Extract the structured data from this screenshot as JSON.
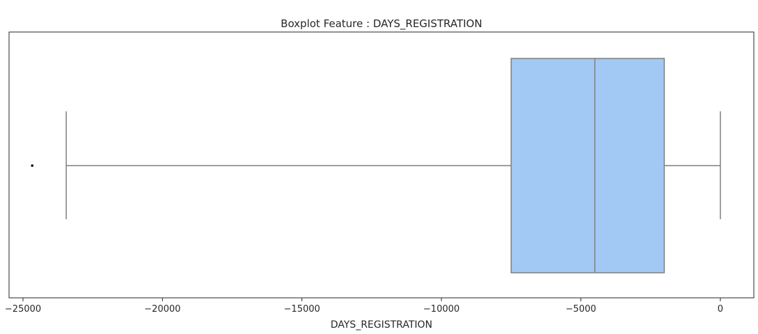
{
  "chart_data": {
    "type": "boxplot",
    "orientation": "horizontal",
    "title": "Boxplot Feature : DAYS_REGISTRATION",
    "xlabel": "DAYS_REGISTRATION",
    "ylabel": "",
    "xlim": [
      -25500,
      1200
    ],
    "xticks": [
      -25000,
      -20000,
      -15000,
      -10000,
      -5000,
      0
    ],
    "xtick_labels": [
      "−25000",
      "−20000",
      "−15000",
      "−10000",
      "−5000",
      "0"
    ],
    "box": {
      "whisker_low": -23450,
      "q1": -7500,
      "median": -4500,
      "q3": -2010,
      "whisker_high": 0
    },
    "outliers": [
      -24670
    ],
    "colors": {
      "box_fill": "#a1c9f4",
      "line": "#7f7f7f",
      "outlier": "#000000",
      "axes": "#262626"
    },
    "grid": false
  }
}
